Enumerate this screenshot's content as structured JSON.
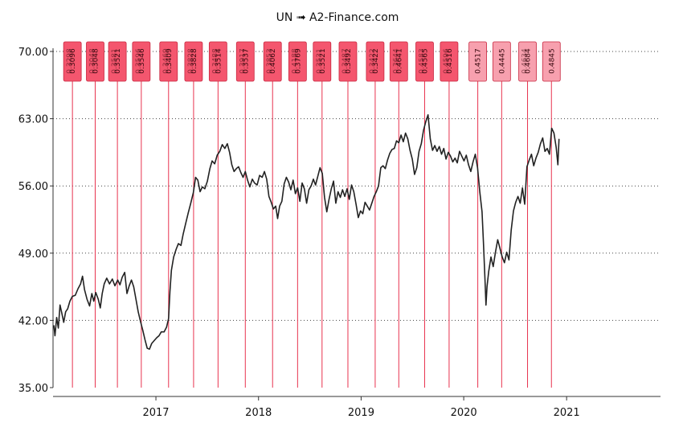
{
  "chart_data": {
    "type": "line",
    "title": "UN ➟ A2-Finance.com",
    "xlabel": "",
    "ylabel": "",
    "ylim": [
      35,
      70
    ],
    "yticks": [
      "35.00",
      "42.00",
      "49.00",
      "56.00",
      "63.00",
      "70.00"
    ],
    "xticks": [
      "2017",
      "2018",
      "2019",
      "2020",
      "2021"
    ],
    "x_range": [
      "2016-01-01",
      "2021-12-01"
    ],
    "grid": {
      "horizontal": true,
      "vertical": false,
      "style": "dotted"
    },
    "colors": {
      "line": "#222222",
      "marker_line": "#e8334f",
      "marker_fill": "#f4566e",
      "marker_fill_light": "#f7a0ae"
    },
    "series": [
      {
        "points": [
          [
            "2016-01-04",
            41.5
          ],
          [
            "2016-01-08",
            40.4
          ],
          [
            "2016-01-14",
            42.3
          ],
          [
            "2016-01-20",
            41.2
          ],
          [
            "2016-01-26",
            43.6
          ],
          [
            "2016-02-01",
            42.8
          ],
          [
            "2016-02-08",
            41.8
          ],
          [
            "2016-02-15",
            42.9
          ],
          [
            "2016-02-22",
            43.2
          ],
          [
            "2016-03-01",
            44.0
          ],
          [
            "2016-03-10",
            44.5
          ],
          [
            "2016-03-20",
            44.6
          ],
          [
            "2016-03-30",
            45.3
          ],
          [
            "2016-04-08",
            45.8
          ],
          [
            "2016-04-15",
            46.6
          ],
          [
            "2016-04-22",
            45.2
          ],
          [
            "2016-05-01",
            44.2
          ],
          [
            "2016-05-10",
            43.5
          ],
          [
            "2016-05-18",
            44.8
          ],
          [
            "2016-05-25",
            44.0
          ],
          [
            "2016-06-01",
            44.9
          ],
          [
            "2016-06-10",
            44.2
          ],
          [
            "2016-06-17",
            43.3
          ],
          [
            "2016-06-24",
            44.8
          ],
          [
            "2016-07-01",
            45.8
          ],
          [
            "2016-07-10",
            46.4
          ],
          [
            "2016-07-20",
            45.8
          ],
          [
            "2016-07-30",
            46.3
          ],
          [
            "2016-08-08",
            45.6
          ],
          [
            "2016-08-18",
            46.2
          ],
          [
            "2016-08-26",
            45.7
          ],
          [
            "2016-09-03",
            46.5
          ],
          [
            "2016-09-12",
            47.0
          ],
          [
            "2016-09-20",
            44.8
          ],
          [
            "2016-09-28",
            45.6
          ],
          [
            "2016-10-06",
            46.2
          ],
          [
            "2016-10-14",
            45.5
          ],
          [
            "2016-10-22",
            44.2
          ],
          [
            "2016-10-30",
            42.9
          ],
          [
            "2016-11-07",
            41.9
          ],
          [
            "2016-11-15",
            41.0
          ],
          [
            "2016-11-23",
            40.0
          ],
          [
            "2016-12-01",
            39.1
          ],
          [
            "2016-12-09",
            39.0
          ],
          [
            "2016-12-17",
            39.6
          ],
          [
            "2016-12-26",
            39.9
          ],
          [
            "2017-01-04",
            40.2
          ],
          [
            "2017-01-12",
            40.4
          ],
          [
            "2017-01-20",
            40.8
          ],
          [
            "2017-01-30",
            40.8
          ],
          [
            "2017-02-08",
            41.3
          ],
          [
            "2017-02-15",
            42.2
          ],
          [
            "2017-02-20",
            45.0
          ],
          [
            "2017-02-25",
            47.2
          ],
          [
            "2017-03-05",
            48.6
          ],
          [
            "2017-03-14",
            49.4
          ],
          [
            "2017-03-22",
            50.0
          ],
          [
            "2017-03-31",
            49.8
          ],
          [
            "2017-04-08",
            51.0
          ],
          [
            "2017-04-17",
            52.1
          ],
          [
            "2017-04-26",
            53.2
          ],
          [
            "2017-05-05",
            54.2
          ],
          [
            "2017-05-14",
            55.3
          ],
          [
            "2017-05-22",
            56.9
          ],
          [
            "2017-05-30",
            56.6
          ],
          [
            "2017-06-07",
            55.4
          ],
          [
            "2017-06-15",
            55.9
          ],
          [
            "2017-06-24",
            55.7
          ],
          [
            "2017-07-03",
            56.5
          ],
          [
            "2017-07-12",
            57.8
          ],
          [
            "2017-07-20",
            58.6
          ],
          [
            "2017-07-29",
            58.3
          ],
          [
            "2017-08-07",
            59.2
          ],
          [
            "2017-08-16",
            59.6
          ],
          [
            "2017-08-25",
            60.3
          ],
          [
            "2017-09-03",
            59.9
          ],
          [
            "2017-09-12",
            60.4
          ],
          [
            "2017-09-20",
            59.5
          ],
          [
            "2017-09-28",
            58.2
          ],
          [
            "2017-10-06",
            57.5
          ],
          [
            "2017-10-14",
            57.8
          ],
          [
            "2017-10-22",
            58.0
          ],
          [
            "2017-10-30",
            57.4
          ],
          [
            "2017-11-07",
            56.9
          ],
          [
            "2017-11-15",
            57.5
          ],
          [
            "2017-11-23",
            56.6
          ],
          [
            "2017-12-01",
            55.9
          ],
          [
            "2017-12-10",
            56.7
          ],
          [
            "2017-12-18",
            56.3
          ],
          [
            "2017-12-27",
            56.1
          ],
          [
            "2018-01-05",
            57.1
          ],
          [
            "2018-01-14",
            56.9
          ],
          [
            "2018-01-22",
            57.5
          ],
          [
            "2018-01-30",
            56.7
          ],
          [
            "2018-02-07",
            54.9
          ],
          [
            "2018-02-15",
            54.3
          ],
          [
            "2018-02-23",
            53.6
          ],
          [
            "2018-03-03",
            53.9
          ],
          [
            "2018-03-10",
            52.6
          ],
          [
            "2018-03-17",
            53.9
          ],
          [
            "2018-03-25",
            54.4
          ],
          [
            "2018-04-02",
            56.2
          ],
          [
            "2018-04-10",
            56.9
          ],
          [
            "2018-04-18",
            56.4
          ],
          [
            "2018-04-26",
            55.6
          ],
          [
            "2018-05-04",
            56.6
          ],
          [
            "2018-05-12",
            55.2
          ],
          [
            "2018-05-20",
            55.8
          ],
          [
            "2018-05-28",
            54.4
          ],
          [
            "2018-06-05",
            56.3
          ],
          [
            "2018-06-13",
            55.7
          ],
          [
            "2018-06-21",
            54.2
          ],
          [
            "2018-06-29",
            55.6
          ],
          [
            "2018-07-07",
            56.0
          ],
          [
            "2018-07-15",
            56.7
          ],
          [
            "2018-07-23",
            56.1
          ],
          [
            "2018-07-31",
            57.0
          ],
          [
            "2018-08-08",
            57.9
          ],
          [
            "2018-08-16",
            57.3
          ],
          [
            "2018-08-24",
            54.8
          ],
          [
            "2018-09-01",
            53.3
          ],
          [
            "2018-09-09",
            54.6
          ],
          [
            "2018-09-17",
            55.7
          ],
          [
            "2018-09-25",
            56.5
          ],
          [
            "2018-10-03",
            54.2
          ],
          [
            "2018-10-11",
            55.4
          ],
          [
            "2018-10-19",
            54.8
          ],
          [
            "2018-10-27",
            55.6
          ],
          [
            "2018-11-04",
            54.9
          ],
          [
            "2018-11-12",
            55.7
          ],
          [
            "2018-11-20",
            54.6
          ],
          [
            "2018-11-28",
            56.1
          ],
          [
            "2018-12-06",
            55.4
          ],
          [
            "2018-12-14",
            54.1
          ],
          [
            "2018-12-22",
            52.7
          ],
          [
            "2018-12-30",
            53.4
          ],
          [
            "2019-01-07",
            53.1
          ],
          [
            "2019-01-15",
            54.3
          ],
          [
            "2019-01-23",
            53.9
          ],
          [
            "2019-01-31",
            53.5
          ],
          [
            "2019-02-08",
            54.2
          ],
          [
            "2019-02-16",
            54.9
          ],
          [
            "2019-02-24",
            55.4
          ],
          [
            "2019-03-04",
            56.0
          ],
          [
            "2019-03-12",
            57.9
          ],
          [
            "2019-03-20",
            58.1
          ],
          [
            "2019-03-28",
            57.8
          ],
          [
            "2019-04-05",
            58.7
          ],
          [
            "2019-04-13",
            59.4
          ],
          [
            "2019-04-21",
            59.8
          ],
          [
            "2019-04-29",
            59.9
          ],
          [
            "2019-05-07",
            60.7
          ],
          [
            "2019-05-15",
            60.5
          ],
          [
            "2019-05-23",
            61.3
          ],
          [
            "2019-05-31",
            60.6
          ],
          [
            "2019-06-08",
            61.5
          ],
          [
            "2019-06-16",
            60.9
          ],
          [
            "2019-06-24",
            59.7
          ],
          [
            "2019-07-02",
            58.8
          ],
          [
            "2019-07-10",
            57.2
          ],
          [
            "2019-07-18",
            57.9
          ],
          [
            "2019-07-26",
            59.6
          ],
          [
            "2019-08-03",
            60.4
          ],
          [
            "2019-08-11",
            61.8
          ],
          [
            "2019-08-19",
            62.7
          ],
          [
            "2019-08-27",
            63.4
          ],
          [
            "2019-09-04",
            60.9
          ],
          [
            "2019-09-12",
            59.7
          ],
          [
            "2019-09-20",
            60.2
          ],
          [
            "2019-09-28",
            59.6
          ],
          [
            "2019-10-06",
            60.1
          ],
          [
            "2019-10-14",
            59.3
          ],
          [
            "2019-10-22",
            59.9
          ],
          [
            "2019-10-30",
            58.8
          ],
          [
            "2019-11-07",
            59.5
          ],
          [
            "2019-11-15",
            59.1
          ],
          [
            "2019-11-23",
            58.5
          ],
          [
            "2019-12-01",
            58.9
          ],
          [
            "2019-12-09",
            58.4
          ],
          [
            "2019-12-17",
            59.6
          ],
          [
            "2019-12-25",
            59.1
          ],
          [
            "2020-01-02",
            58.6
          ],
          [
            "2020-01-10",
            59.2
          ],
          [
            "2020-01-18",
            58.2
          ],
          [
            "2020-01-26",
            57.5
          ],
          [
            "2020-02-03",
            58.5
          ],
          [
            "2020-02-11",
            59.3
          ],
          [
            "2020-02-19",
            57.9
          ],
          [
            "2020-02-27",
            55.4
          ],
          [
            "2020-03-06",
            53.3
          ],
          [
            "2020-03-11",
            50.2
          ],
          [
            "2020-03-16",
            46.6
          ],
          [
            "2020-03-20",
            43.6
          ],
          [
            "2020-03-24",
            45.5
          ],
          [
            "2020-03-30",
            47.1
          ],
          [
            "2020-04-07",
            48.6
          ],
          [
            "2020-04-15",
            47.6
          ],
          [
            "2020-04-23",
            49.1
          ],
          [
            "2020-05-01",
            50.4
          ],
          [
            "2020-05-09",
            49.5
          ],
          [
            "2020-05-17",
            48.6
          ],
          [
            "2020-05-25",
            48.0
          ],
          [
            "2020-06-02",
            49.1
          ],
          [
            "2020-06-10",
            48.3
          ],
          [
            "2020-06-18",
            51.4
          ],
          [
            "2020-06-26",
            53.4
          ],
          [
            "2020-07-04",
            54.3
          ],
          [
            "2020-07-12",
            54.9
          ],
          [
            "2020-07-20",
            54.2
          ],
          [
            "2020-07-28",
            55.8
          ],
          [
            "2020-08-05",
            54.1
          ],
          [
            "2020-08-13",
            58.0
          ],
          [
            "2020-08-21",
            58.7
          ],
          [
            "2020-08-29",
            59.3
          ],
          [
            "2020-09-06",
            58.1
          ],
          [
            "2020-09-14",
            58.9
          ],
          [
            "2020-09-22",
            59.5
          ],
          [
            "2020-09-30",
            60.4
          ],
          [
            "2020-10-08",
            61.0
          ],
          [
            "2020-10-16",
            59.6
          ],
          [
            "2020-10-24",
            59.9
          ],
          [
            "2020-11-01",
            59.3
          ],
          [
            "2020-11-09",
            62.0
          ],
          [
            "2020-11-17",
            61.5
          ],
          [
            "2020-11-25",
            60.0
          ],
          [
            "2020-12-01",
            58.2
          ],
          [
            "2020-12-05",
            60.9
          ]
        ]
      }
    ],
    "markers": [
      {
        "date": "2016-03-10",
        "label": "0.3096",
        "overlay": "0.3298",
        "shade": "normal"
      },
      {
        "date": "2016-05-30",
        "label": "0.3048",
        "overlay": "0.3048",
        "shade": "normal"
      },
      {
        "date": "2016-08-17",
        "label": "0.3521",
        "overlay": "0.3581",
        "shade": "normal"
      },
      {
        "date": "2016-11-10",
        "label": "0.3546",
        "overlay": "0.3596",
        "shade": "normal"
      },
      {
        "date": "2017-02-15",
        "label": "0.3409",
        "overlay": "0.3469",
        "shade": "normal"
      },
      {
        "date": "2017-05-15",
        "label": "0.3828",
        "overlay": "0.3828",
        "shade": "normal"
      },
      {
        "date": "2017-08-10",
        "label": "0.3514",
        "overlay": "0.3488",
        "shade": "normal"
      },
      {
        "date": "2017-11-15",
        "label": "0.3537",
        "overlay": "0.3917",
        "shade": "normal"
      },
      {
        "date": "2018-02-20",
        "label": "0.4062",
        "overlay": "0.3853",
        "shade": "normal"
      },
      {
        "date": "2018-05-20",
        "label": "0.3769",
        "overlay": "0.4188",
        "shade": "normal"
      },
      {
        "date": "2018-08-15",
        "label": "0.3521",
        "overlay": "0.3531",
        "shade": "normal"
      },
      {
        "date": "2018-11-15",
        "label": "0.3492",
        "overlay": "0.3487",
        "shade": "normal"
      },
      {
        "date": "2019-02-20",
        "label": "0.3422",
        "overlay": "0.3422",
        "shade": "normal"
      },
      {
        "date": "2019-05-15",
        "label": "0.4641",
        "overlay": "0.3644",
        "shade": "normal"
      },
      {
        "date": "2019-08-15",
        "label": "0.4565",
        "overlay": "0.4583",
        "shade": "normal"
      },
      {
        "date": "2019-11-10",
        "label": "0.4516",
        "overlay": "0.4596",
        "shade": "normal"
      },
      {
        "date": "2020-02-20",
        "label": "0.4517",
        "overlay": "",
        "shade": "light"
      },
      {
        "date": "2020-05-15",
        "label": "0.4445",
        "overlay": "",
        "shade": "light"
      },
      {
        "date": "2020-08-15",
        "label": "0.4684",
        "overlay": "0.4634",
        "shade": "light"
      },
      {
        "date": "2020-11-08",
        "label": "0.4845",
        "overlay": "",
        "shade": "light"
      }
    ]
  }
}
